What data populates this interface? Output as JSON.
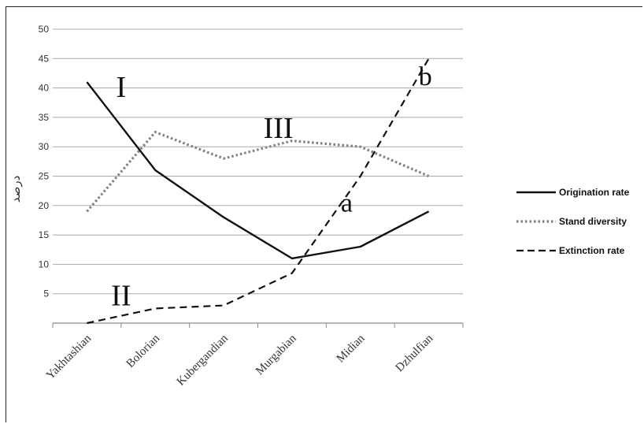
{
  "chart_data": {
    "type": "line",
    "ylabel": "درصد",
    "ylim": [
      0,
      50
    ],
    "yticks": [
      5,
      10,
      15,
      20,
      25,
      30,
      35,
      40,
      45,
      50
    ],
    "grid": true,
    "legend_position": "right",
    "categories": [
      "Yakhtashian",
      "Bolorian",
      "Kubergandian",
      "Murgabian",
      "Midian",
      "Dzhulfian"
    ],
    "x_positions": [
      0,
      1,
      2,
      3,
      4,
      5,
      6
    ],
    "series": [
      {
        "name": "Origination rate",
        "style": "solid",
        "color": "#111111",
        "points": [
          [
            0.5,
            41
          ],
          [
            1.5,
            26
          ],
          [
            2.5,
            18
          ],
          [
            3.5,
            11
          ],
          [
            4.5,
            13
          ],
          [
            5.5,
            19
          ]
        ]
      },
      {
        "name": "Stand diversity",
        "style": "dotted",
        "color": "#808080",
        "points": [
          [
            0.5,
            19
          ],
          [
            1.5,
            32.5
          ],
          [
            2.5,
            28
          ],
          [
            3.5,
            31
          ],
          [
            4.5,
            30
          ],
          [
            5.5,
            25
          ]
        ]
      },
      {
        "name": "Extinction rate",
        "style": "dashed",
        "color": "#111111",
        "points": [
          [
            0.5,
            0
          ],
          [
            1.5,
            2.5
          ],
          [
            2.5,
            3
          ],
          [
            3.5,
            8.5
          ],
          [
            4.5,
            25
          ],
          [
            5.5,
            45
          ]
        ]
      }
    ],
    "annotations": [
      {
        "text": "I",
        "kind": "roman",
        "x": 1.0,
        "y": 38.5
      },
      {
        "text": "III",
        "kind": "roman",
        "x": 3.3,
        "y": 31.5
      },
      {
        "text": "II",
        "kind": "roman",
        "x": 1.0,
        "y": 3.0
      },
      {
        "text": "a",
        "kind": "letter",
        "x": 4.3,
        "y": 19.0
      },
      {
        "text": "b",
        "kind": "letter",
        "x": 5.45,
        "y": 40.5
      }
    ]
  }
}
